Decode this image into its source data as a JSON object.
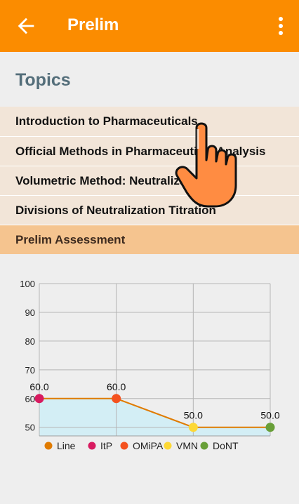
{
  "appbar": {
    "title": "Prelim",
    "back_icon": "arrow-left-icon",
    "menu_icon": "more-vertical-icon",
    "color": "#fb8c00"
  },
  "section_title": "Topics",
  "topics": [
    {
      "label": "Introduction to Pharmaceuticals"
    },
    {
      "label": "Official Methods in Pharmaceutical Analysis"
    },
    {
      "label": "Volumetric Method: Neutralization"
    },
    {
      "label": "Divisions of Neutralization Titration"
    },
    {
      "label": "Prelim Assessment",
      "active": true
    }
  ],
  "overlay": {
    "icon": "pointing-hand-icon"
  },
  "chart_data": {
    "type": "line",
    "categories": [
      "ItP",
      "OMiPA",
      "VMN",
      "DoNT"
    ],
    "series": [
      {
        "name": "Line",
        "values": [
          60.0,
          60.0,
          50.0,
          50.0
        ],
        "color": "#e07b00"
      }
    ],
    "point_labels": [
      "60.0",
      "60.0",
      "50.0",
      "50.0"
    ],
    "point_colors": [
      "#d81b60",
      "#f4511e",
      "#fdd835",
      "#689f38"
    ],
    "y_ticks": [
      "100",
      "90",
      "80",
      "70",
      "60",
      "50"
    ],
    "ylim": [
      47,
      100
    ],
    "legend": [
      {
        "label": "Line",
        "color": "#e07b00"
      },
      {
        "label": "ItP",
        "color": "#d81b60"
      },
      {
        "label": "OMiPA",
        "color": "#f4511e"
      },
      {
        "label": "VMN",
        "color": "#fdd835"
      },
      {
        "label": "DoNT",
        "color": "#689f38"
      }
    ],
    "legend_position": "bottom",
    "fill_color": "#d3eef5",
    "grid": true
  }
}
